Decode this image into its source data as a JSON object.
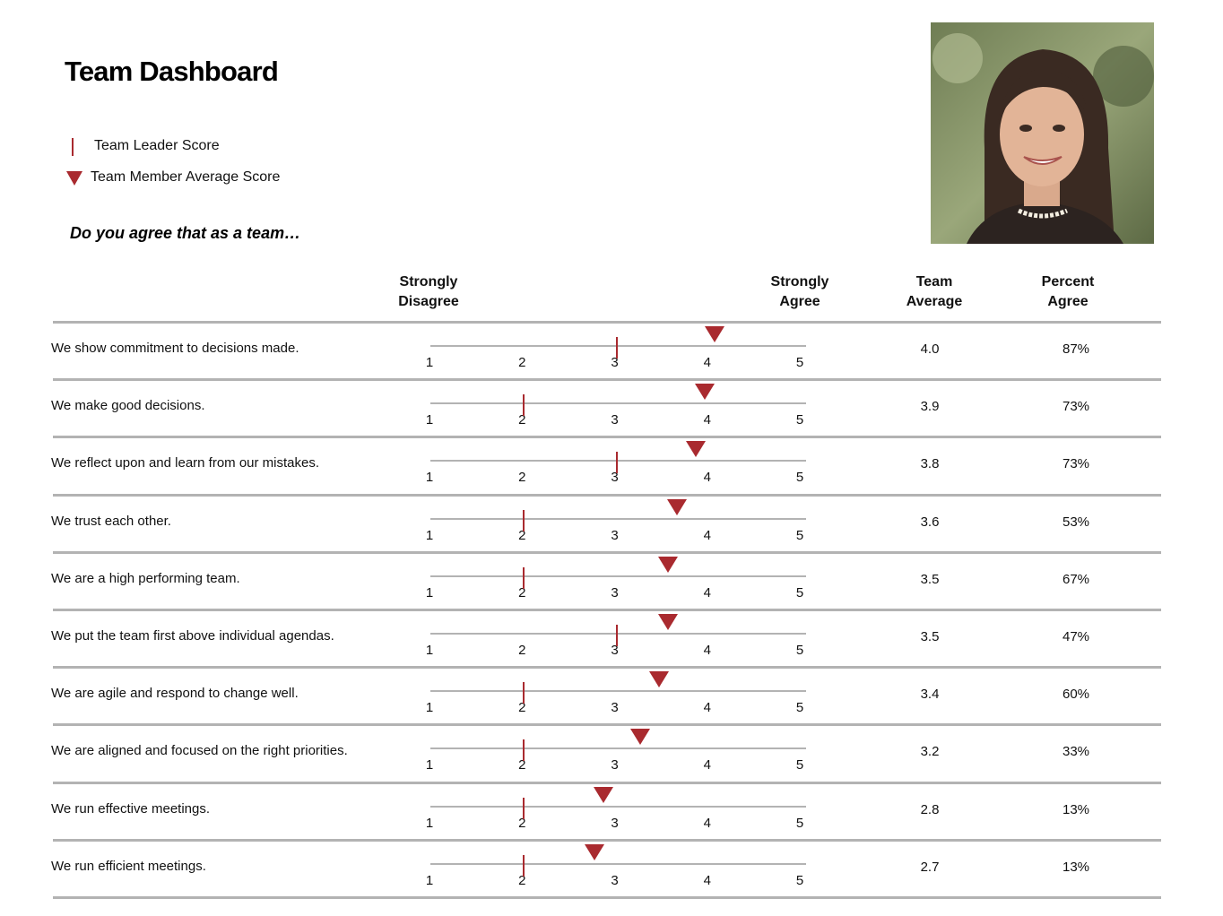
{
  "title": "Team Dashboard",
  "legend": {
    "leader": "Team Leader Score",
    "member_avg": "Team Member Average Score"
  },
  "question": "Do you agree that as a team…",
  "headers": {
    "strongly_disagree": [
      "Strongly",
      "Disagree"
    ],
    "strongly_agree": [
      "Strongly",
      "Agree"
    ],
    "team_average": [
      "Team",
      "Average"
    ],
    "percent_agree": [
      "Percent",
      "Agree"
    ]
  },
  "colors": {
    "accent": "#a92a2f",
    "rule": "#b3b3b3"
  },
  "photo_icon": "person-portrait-icon",
  "chart_data": {
    "type": "scatter",
    "scale": [
      1,
      2,
      3,
      4,
      5
    ],
    "xlim": [
      1,
      5
    ],
    "series": [
      {
        "name": "Team Leader Score"
      },
      {
        "name": "Team Member Average Score"
      }
    ],
    "rows": [
      {
        "label": "We show commitment to decisions made.",
        "leader": 3,
        "avg": 4.0,
        "avg_text": "4.0",
        "pct": "87%"
      },
      {
        "label": "We make good decisions.",
        "leader": 2,
        "avg": 3.9,
        "avg_text": "3.9",
        "pct": "73%"
      },
      {
        "label": "We reflect upon and learn from our mistakes.",
        "leader": 3,
        "avg": 3.8,
        "avg_text": "3.8",
        "pct": "73%"
      },
      {
        "label": "We trust each other.",
        "leader": 2,
        "avg": 3.6,
        "avg_text": "3.6",
        "pct": "53%"
      },
      {
        "label": "We are a high performing team.",
        "leader": 2,
        "avg": 3.5,
        "avg_text": "3.5",
        "pct": "67%"
      },
      {
        "label": "We put the team first above individual agendas.",
        "leader": 3,
        "avg": 3.5,
        "avg_text": "3.5",
        "pct": "47%"
      },
      {
        "label": "We are agile and respond to change well.",
        "leader": 2,
        "avg": 3.4,
        "avg_text": "3.4",
        "pct": "60%"
      },
      {
        "label": "We are aligned and focused on the right priorities.",
        "leader": 2,
        "avg": 3.2,
        "avg_text": "3.2",
        "pct": "33%"
      },
      {
        "label": "We run effective meetings.",
        "leader": 2,
        "avg": 2.8,
        "avg_text": "2.8",
        "pct": "13%"
      },
      {
        "label": "We run efficient meetings.",
        "leader": 2,
        "avg": 2.7,
        "avg_text": "2.7",
        "pct": "13%"
      }
    ]
  }
}
